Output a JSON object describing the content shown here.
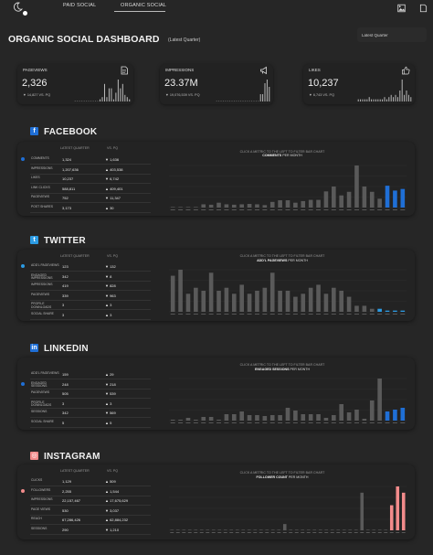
{
  "nav": {
    "tabs": [
      "PAID SOCIAL",
      "ORGANIC SOCIAL"
    ],
    "active_tab": "ORGANIC SOCIAL"
  },
  "header": {
    "title": "ORGANIC SOCIAL DASHBOARD",
    "subtitle": "(Latest Quarter)",
    "filter_value": "Latest Quarter"
  },
  "colors": {
    "background": "#262626",
    "panel": "#232323",
    "bar": "#5a5a5a",
    "facebook_hl": "#1f6fd6",
    "twitter_hl": "#2c9be3",
    "linkedin_hl": "#1f6fd6",
    "instagram_hl": "#f28b8b",
    "facebook_dot": "#1f6fd6",
    "twitter_dot": "#2c9be3",
    "linkedin_dot": "#1f6fd6",
    "instagram_dot": "#f28b8b"
  },
  "kpis": [
    {
      "label": "PAGEVIEWS",
      "value": "2,326",
      "change": "▼ 14,827 VS. PQ",
      "icon": "page-icon"
    },
    {
      "label": "IMPRESSIONS",
      "value": "23.37M",
      "change": "▼ 19,076,539 VS. PQ",
      "icon": "megaphone-icon"
    },
    {
      "label": "LIKES",
      "value": "10,237",
      "change": "▼ 6,743 VS. PQ",
      "icon": "thumbs-up-icon"
    }
  ],
  "col_headers": {
    "latest": "LATEST QUARTER",
    "pq": "VS. PQ"
  },
  "sections": [
    {
      "name": "FACEBOOK",
      "hint": "CLICK A METRIC TO THE LEFT TO FILTER BAR CHART",
      "chart_title": "COMMENTS",
      "chart_unit": "PER MONTH",
      "metrics": [
        {
          "name": "COMMENTS",
          "value": "1,324",
          "change": "▼ 1,636",
          "selected": true
        },
        {
          "name": "IMPRESSIONS",
          "value": "1,207,636",
          "change": "▲ 403,538",
          "selected": false
        },
        {
          "name": "LIKES",
          "value": "10,237",
          "change": "▼ 6,742",
          "selected": false
        },
        {
          "name": "LINK CLICKS",
          "value": "588,811",
          "change": "▲ 409,401",
          "selected": false
        },
        {
          "name": "PAGEVIEWS",
          "value": "752",
          "change": "▼ 11,347",
          "selected": false
        },
        {
          "name": "POST SHARES",
          "value": "3,173",
          "change": "▲ 30",
          "selected": false
        }
      ]
    },
    {
      "name": "TWITTER",
      "hint": "CLICK A METRIC TO THE LEFT TO FILTER BAR CHART",
      "chart_title": "ADD'L PAGEVIEWS",
      "chart_unit": "PER MONTH",
      "metrics": [
        {
          "name": "ADD'L PAGEVIEWS",
          "value": "123",
          "change": "▼ 132",
          "selected": true
        },
        {
          "name": "ENGAGED IMPRESSIONS",
          "value": "342",
          "change": "▼ 8",
          "selected": false
        },
        {
          "name": "IMPRESSIONS",
          "value": "419",
          "change": "▼ 828",
          "selected": false
        },
        {
          "name": "PAGEVIEWS",
          "value": "339",
          "change": "▼ 963",
          "selected": false
        },
        {
          "name": "PROFILE DOWNLOADS",
          "value": "3",
          "change": "▲ 3",
          "selected": false
        },
        {
          "name": "SOCIAL SHARE",
          "value": "3",
          "change": "▲ 3",
          "selected": false
        }
      ]
    },
    {
      "name": "LINKEDIN",
      "hint": "CLICK A METRIC TO THE LEFT TO FILTER BAR CHART",
      "chart_title": "ENGAGED SESSIONS",
      "chart_unit": "PER MONTH",
      "metrics": [
        {
          "name": "ADD'L PAGEVIEWS",
          "value": "159",
          "change": "▲ 29",
          "selected": false
        },
        {
          "name": "ENGAGED SESSIONS",
          "value": "248",
          "change": "▼ 218",
          "selected": true
        },
        {
          "name": "PAGEVIEWS",
          "value": "505",
          "change": "▼ 539",
          "selected": false
        },
        {
          "name": "PROFILE DOWNLOADS",
          "value": "3",
          "change": "▲ 3",
          "selected": false
        },
        {
          "name": "SESSIONS",
          "value": "342",
          "change": "▼ 569",
          "selected": false
        },
        {
          "name": "SOCIAL SHARE",
          "value": "5",
          "change": "▲ 5",
          "selected": false
        }
      ]
    },
    {
      "name": "INSTAGRAM",
      "hint": "CLICK A METRIC TO THE LEFT TO FILTER BAR CHART",
      "chart_title": "FOLLOWER COUNT",
      "chart_unit": "PER MONTH",
      "metrics": [
        {
          "name": "CLICKS",
          "value": "1,129",
          "change": "▲ 509",
          "selected": false
        },
        {
          "name": "FOLLOWERS",
          "value": "2,255",
          "change": "▲ 1,544",
          "selected": true
        },
        {
          "name": "IMPRESSIONS",
          "value": "22,157,467",
          "change": "▲ 17,675,629",
          "selected": false
        },
        {
          "name": "PAGE VIEWS",
          "value": "530",
          "change": "▼ 3,037",
          "selected": false
        },
        {
          "name": "REACH",
          "value": "67,286,426",
          "change": "▲ 62,884,232",
          "selected": false
        },
        {
          "name": "SESSIONS",
          "value": "290",
          "change": "▼ 1,210",
          "selected": false
        }
      ]
    }
  ],
  "chart_data": [
    {
      "type": "bar",
      "title": "COMMENTS",
      "values": [
        2,
        1,
        2,
        1,
        40,
        35,
        60,
        40,
        35,
        40,
        45,
        40,
        30,
        70,
        90,
        90,
        60,
        80,
        95,
        95,
        200,
        260,
        150,
        195,
        520,
        260,
        195,
        110,
        270,
        210,
        230
      ]
    },
    {
      "type": "bar",
      "title": "ADD'L PAGEVIEWS",
      "values": [
        60,
        70,
        30,
        40,
        35,
        65,
        35,
        40,
        30,
        45,
        30,
        35,
        40,
        65,
        35,
        35,
        25,
        30,
        40,
        45,
        30,
        40,
        35,
        25,
        10,
        10,
        5,
        5,
        2,
        2,
        2
      ]
    },
    {
      "type": "bar",
      "title": "ENGAGED SESSIONS",
      "values": [
        5,
        5,
        15,
        5,
        20,
        20,
        5,
        35,
        35,
        50,
        30,
        30,
        25,
        30,
        30,
        70,
        55,
        35,
        35,
        35,
        15,
        30,
        90,
        45,
        60,
        10,
        110,
        230,
        50,
        60,
        70
      ]
    },
    {
      "type": "bar",
      "title": "FOLLOWER COUNT",
      "values": [
        0,
        0,
        0,
        0,
        0,
        0,
        0,
        0,
        0,
        0,
        0,
        0,
        0,
        0,
        0,
        0,
        0,
        0,
        0,
        1,
        0,
        0,
        0,
        0,
        0,
        0,
        0,
        0,
        0,
        0,
        0,
        0,
        6,
        0,
        0,
        0,
        0,
        4,
        7,
        6
      ]
    }
  ],
  "sparks": [
    [
      0,
      0,
      0,
      0,
      0,
      0,
      0,
      0,
      0,
      0,
      0,
      1,
      2,
      8,
      2,
      6,
      6,
      1,
      4,
      10,
      6,
      8,
      3,
      2,
      1
    ],
    [
      0,
      0,
      0,
      0,
      0,
      0,
      0,
      0,
      0,
      0,
      0,
      0,
      0,
      0,
      0,
      0,
      0,
      0,
      0,
      0,
      2,
      2,
      5,
      6,
      4
    ],
    [
      1,
      1,
      1,
      1,
      1,
      2,
      1,
      1,
      1,
      1,
      1,
      1,
      2,
      1,
      2,
      3,
      2,
      3,
      2,
      5,
      10,
      3,
      5,
      3,
      2
    ]
  ]
}
